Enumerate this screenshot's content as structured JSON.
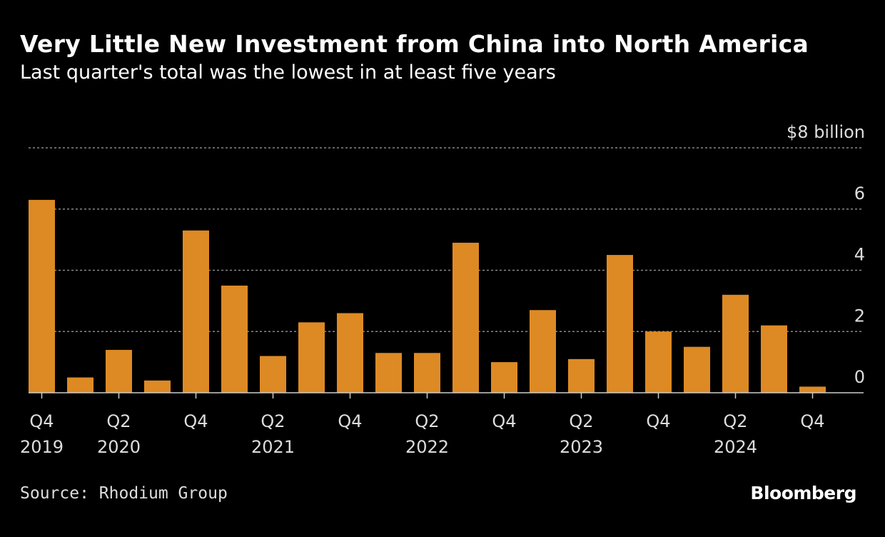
{
  "chart_data": {
    "type": "bar",
    "title": "Very Little New Investment from China into North America",
    "subtitle": "Last quarter's total was the lowest in at least five years",
    "ylabel_unit": "$8 billion",
    "ylim": [
      0,
      8
    ],
    "yticks": [
      "0",
      "2",
      "4",
      "6",
      "$8 billion"
    ],
    "ytick_values": [
      0,
      2,
      4,
      6,
      8
    ],
    "grid": "horizontal dotted",
    "categories": [
      "Q4 2019",
      "Q1 2020",
      "Q2 2020",
      "Q3 2020",
      "Q4 2020",
      "Q1 2021",
      "Q2 2021",
      "Q3 2021",
      "Q4 2021",
      "Q1 2022",
      "Q2 2022",
      "Q3 2022",
      "Q4 2022",
      "Q1 2023",
      "Q2 2023",
      "Q3 2023",
      "Q4 2023",
      "Q1 2024",
      "Q2 2024",
      "Q3 2024",
      "Q4 2024"
    ],
    "values": [
      6.3,
      0.5,
      1.4,
      0.4,
      5.3,
      3.5,
      1.2,
      2.3,
      2.6,
      1.3,
      1.3,
      4.9,
      1.0,
      2.7,
      1.1,
      4.5,
      2.0,
      1.5,
      3.2,
      2.2,
      0.2
    ],
    "xtick_labels": [
      {
        "index": 0,
        "q": "Q4",
        "year": "2019"
      },
      {
        "index": 2,
        "q": "Q2",
        "year": "2020"
      },
      {
        "index": 4,
        "q": "Q4",
        "year": ""
      },
      {
        "index": 6,
        "q": "Q2",
        "year": "2021"
      },
      {
        "index": 8,
        "q": "Q4",
        "year": ""
      },
      {
        "index": 10,
        "q": "Q2",
        "year": "2022"
      },
      {
        "index": 12,
        "q": "Q4",
        "year": ""
      },
      {
        "index": 14,
        "q": "Q2",
        "year": "2023"
      },
      {
        "index": 16,
        "q": "Q4",
        "year": ""
      },
      {
        "index": 18,
        "q": "Q2",
        "year": "2024"
      },
      {
        "index": 20,
        "q": "Q4",
        "year": ""
      }
    ],
    "bar_color": "#dd8a25"
  },
  "source": "Source: Rhodium Group",
  "logo": "Bloomberg"
}
